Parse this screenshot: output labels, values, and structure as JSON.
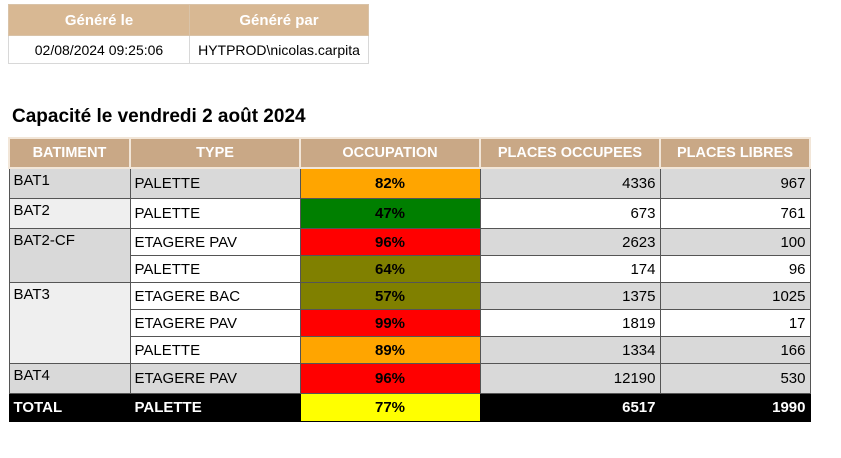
{
  "meta": {
    "generated_on_label": "Généré le",
    "generated_by_label": "Généré par",
    "generated_on": "02/08/2024 09:25:06",
    "generated_by": "HYTPROD\\nicolas.carpita"
  },
  "heading": "Capacité le vendredi 2 août 2024",
  "columns": {
    "batiment": "BATIMENT",
    "type": "TYPE",
    "occupation": "OCCUPATION",
    "places_occupees": "PLACES OCCUPEES",
    "places_libres": "PLACES LIBRES"
  },
  "rows": [
    {
      "batiment": "BAT1",
      "type": "PALETTE",
      "occupation": "82%",
      "occ_color": "#ffa500",
      "places_occupees": "4336",
      "places_libres": "967"
    },
    {
      "batiment": "BAT2",
      "type": "PALETTE",
      "occupation": "47%",
      "occ_color": "#007f00",
      "places_occupees": "673",
      "places_libres": "761"
    },
    {
      "batiment": "BAT2-CF",
      "type": "ETAGERE PAV",
      "occupation": "96%",
      "occ_color": "#ff0000",
      "places_occupees": "2623",
      "places_libres": "100"
    },
    {
      "batiment": "",
      "type": "PALETTE",
      "occupation": "64%",
      "occ_color": "#808000",
      "places_occupees": "174",
      "places_libres": "96"
    },
    {
      "batiment": "BAT3",
      "type": "ETAGERE BAC",
      "occupation": "57%",
      "occ_color": "#808000",
      "places_occupees": "1375",
      "places_libres": "1025"
    },
    {
      "batiment": "",
      "type": "ETAGERE PAV",
      "occupation": "99%",
      "occ_color": "#ff0000",
      "places_occupees": "1819",
      "places_libres": "17"
    },
    {
      "batiment": "",
      "type": "PALETTE",
      "occupation": "89%",
      "occ_color": "#ffa500",
      "places_occupees": "1334",
      "places_libres": "166"
    },
    {
      "batiment": "BAT4",
      "type": "ETAGERE PAV",
      "occupation": "96%",
      "occ_color": "#ff0000",
      "places_occupees": "12190",
      "places_libres": "530"
    }
  ],
  "total": {
    "batiment": "TOTAL",
    "type": "PALETTE",
    "occupation": "77%",
    "occ_color": "#ffff00",
    "places_occupees": "6517",
    "places_libres": "1990"
  }
}
